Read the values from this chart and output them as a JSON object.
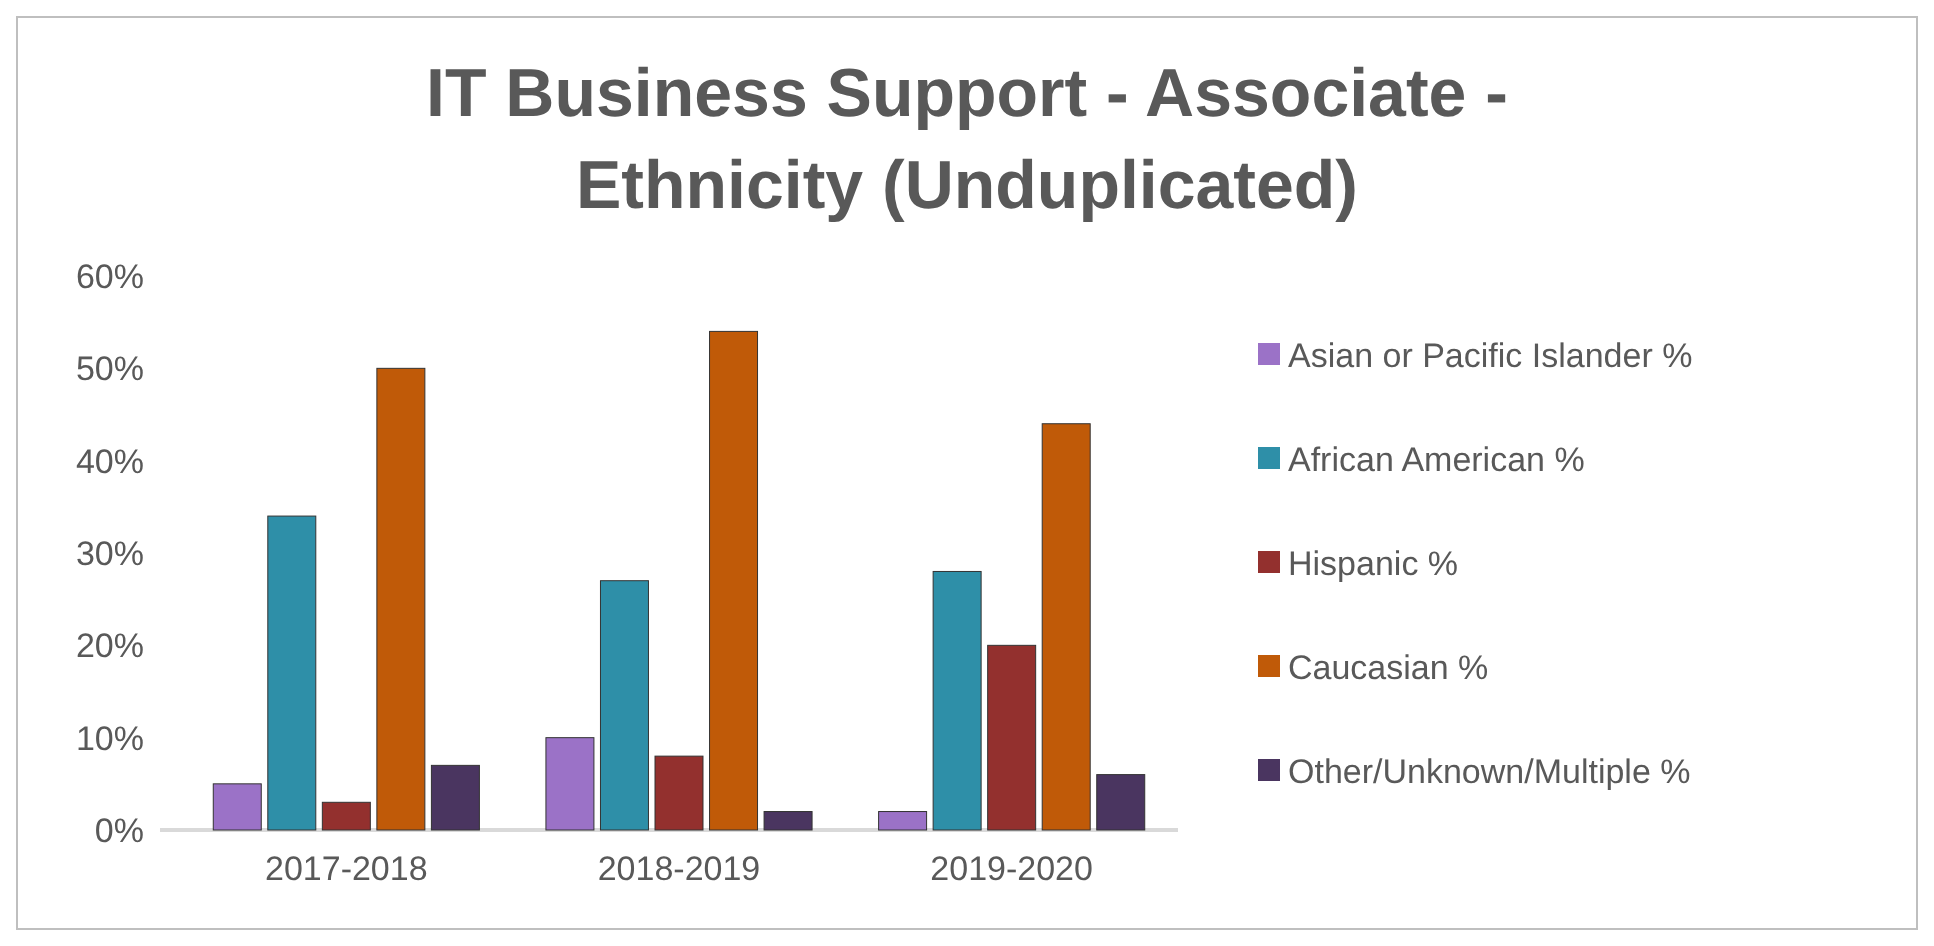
{
  "chart_data": {
    "type": "bar",
    "title": "IT Business Support - Associate - Ethnicity (Unduplicated)",
    "categories": [
      "2017-2018",
      "2018-2019",
      "2019-2020"
    ],
    "series": [
      {
        "name": "Asian or Pacific Islander %",
        "color": "#9b72c7",
        "values": [
          5,
          10,
          2
        ]
      },
      {
        "name": "African American %",
        "color": "#2e8fa8",
        "values": [
          34,
          27,
          28
        ]
      },
      {
        "name": "Hispanic %",
        "color": "#93302e",
        "values": [
          3,
          8,
          20
        ]
      },
      {
        "name": "Caucasian %",
        "color": "#c05a08",
        "values": [
          50,
          54,
          44
        ]
      },
      {
        "name": "Other/Unknown/Multiple %",
        "color": "#4a3560",
        "values": [
          7,
          2,
          6
        ]
      }
    ],
    "ylim": [
      0,
      60
    ],
    "yticks": [
      {
        "value": 0,
        "label": "0%"
      },
      {
        "value": 10,
        "label": "10%"
      },
      {
        "value": 20,
        "label": "20%"
      },
      {
        "value": 30,
        "label": "30%"
      },
      {
        "value": 40,
        "label": "40%"
      },
      {
        "value": 50,
        "label": "50%"
      },
      {
        "value": 60,
        "label": "60%"
      }
    ],
    "grid": false,
    "legend": "right"
  }
}
